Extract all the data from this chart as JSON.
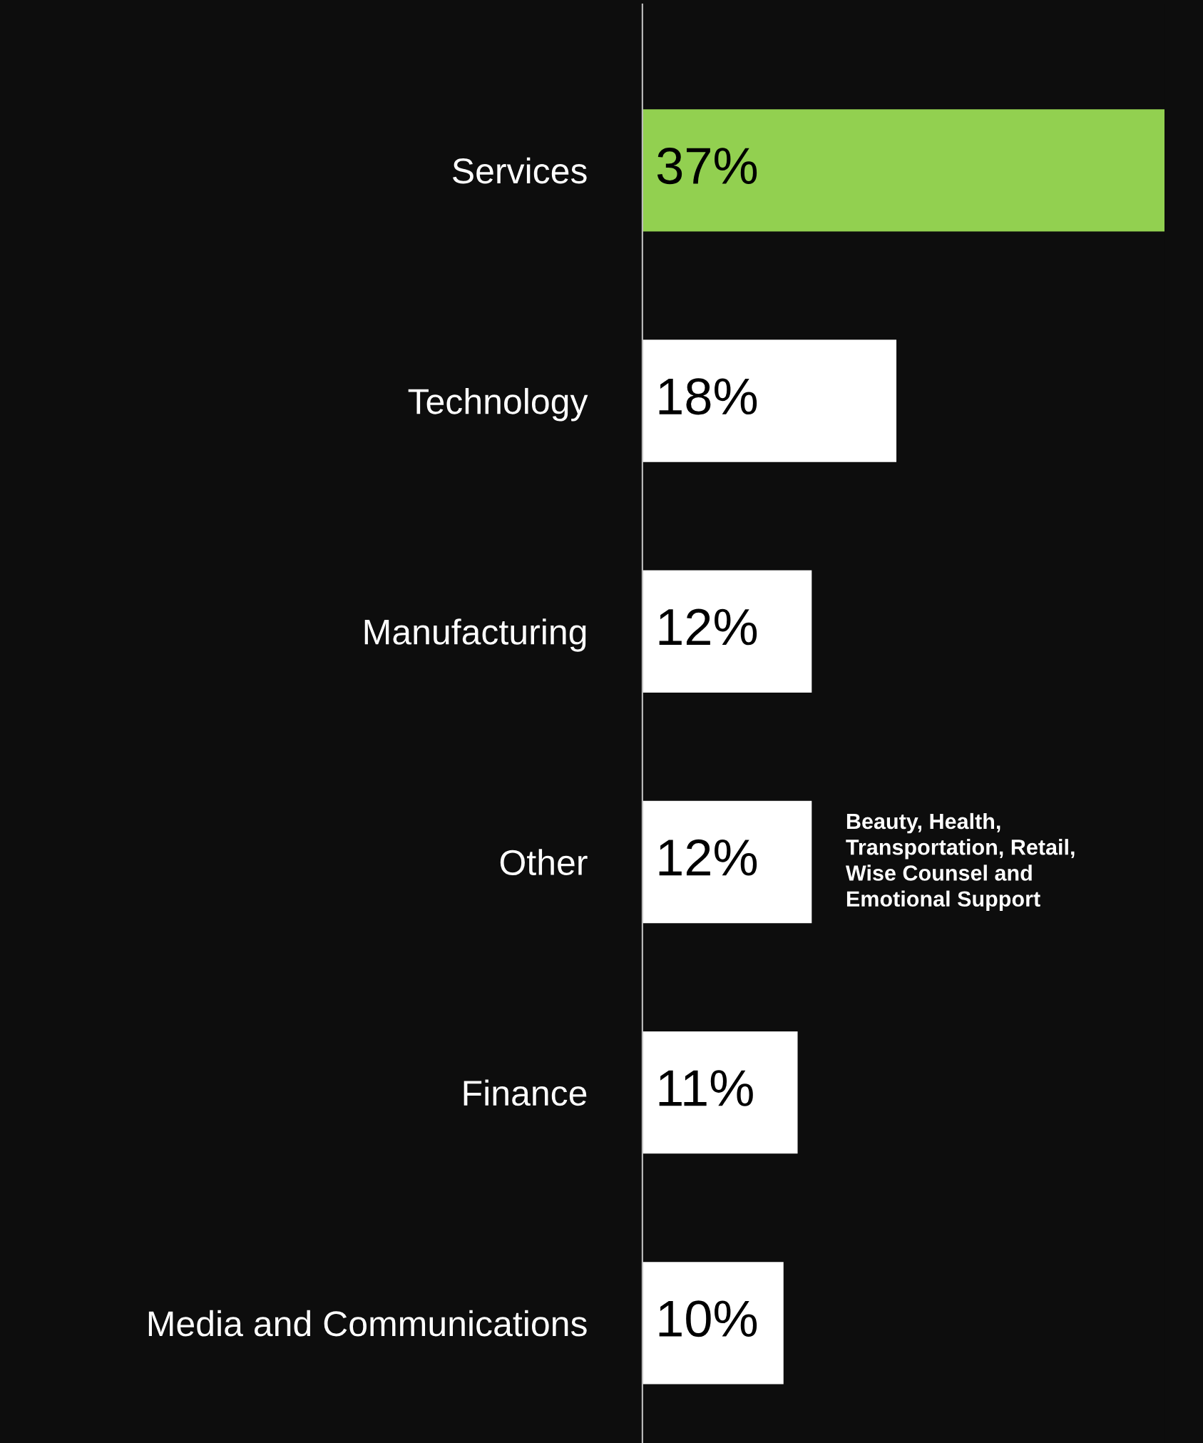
{
  "chart_data": {
    "type": "bar",
    "orientation": "horizontal",
    "categories": [
      "Services",
      "Technology",
      "Manufacturing",
      "Other",
      "Finance",
      "Media and Communications"
    ],
    "values": [
      37,
      18,
      12,
      12,
      11,
      10
    ],
    "colors": [
      "#92d050",
      "#ffffff",
      "#ffffff",
      "#ffffff",
      "#ffffff",
      "#ffffff"
    ],
    "value_labels": [
      "37%",
      "18%",
      "12%",
      "12%",
      "11%",
      "10%"
    ],
    "annotations": [
      {
        "text": "Beauty, Health,\nTransportation, Retail,\nWise Counsel and\nEmotional Support",
        "x": 12,
        "y": "Other"
      }
    ],
    "grid": false,
    "legend": false
  }
}
